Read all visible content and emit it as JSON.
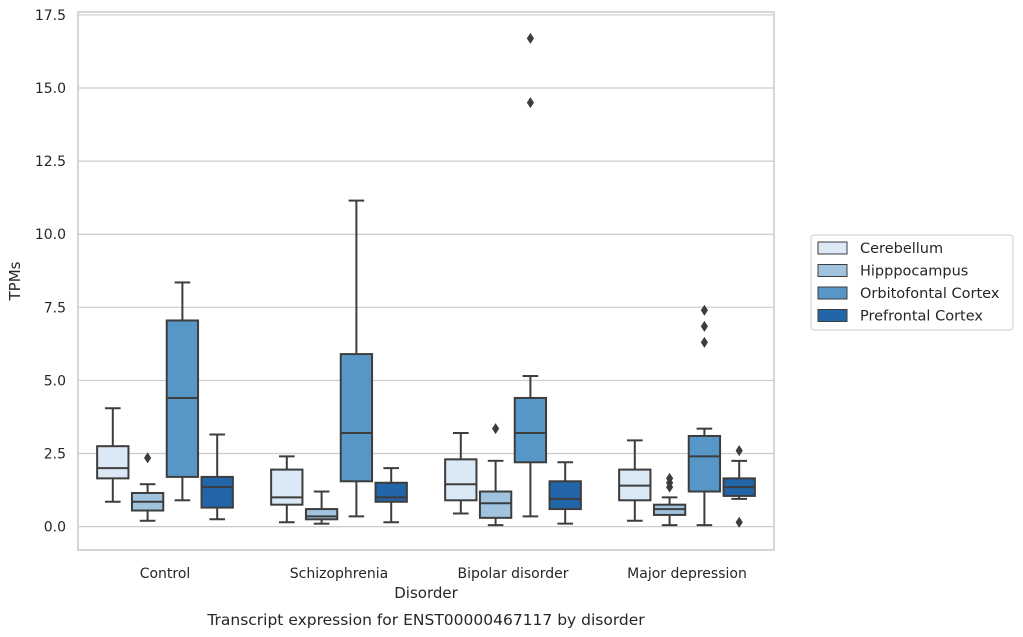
{
  "chart_data": {
    "type": "box",
    "xlabel": "Disorder",
    "ylabel": "TPMs",
    "caption": "Transcript expression for ENST00000467117 by disorder",
    "ylim": [
      -0.8,
      17.6
    ],
    "yticks": [
      "0.0",
      "2.5",
      "5.0",
      "7.5",
      "10.0",
      "12.5",
      "15.0",
      "17.5"
    ],
    "grid": "horizontal",
    "legend_position": "right",
    "categories": [
      "Control",
      "Schizophrenia",
      "Bipolar disorder",
      "Major depression"
    ],
    "series": [
      {
        "name": "Cerebellum",
        "color": "#dbe8f5",
        "boxes": [
          {
            "whisker_low": 0.85,
            "q1": 1.65,
            "median": 2.0,
            "q3": 2.75,
            "whisker_high": 4.05,
            "outliers": []
          },
          {
            "whisker_low": 0.15,
            "q1": 0.75,
            "median": 1.0,
            "q3": 1.95,
            "whisker_high": 2.4,
            "outliers": []
          },
          {
            "whisker_low": 0.45,
            "q1": 0.9,
            "median": 1.45,
            "q3": 2.3,
            "whisker_high": 3.2,
            "outliers": []
          },
          {
            "whisker_low": 0.2,
            "q1": 0.9,
            "median": 1.4,
            "q3": 1.95,
            "whisker_high": 2.95,
            "outliers": []
          }
        ]
      },
      {
        "name": "Hipppocampus",
        "color": "#a0c4e0",
        "boxes": [
          {
            "whisker_low": 0.2,
            "q1": 0.55,
            "median": 0.85,
            "q3": 1.15,
            "whisker_high": 1.45,
            "outliers": [
              2.35
            ]
          },
          {
            "whisker_low": 0.1,
            "q1": 0.25,
            "median": 0.35,
            "q3": 0.6,
            "whisker_high": 1.2,
            "outliers": []
          },
          {
            "whisker_low": 0.05,
            "q1": 0.3,
            "median": 0.8,
            "q3": 1.2,
            "whisker_high": 2.25,
            "outliers": [
              3.35
            ]
          },
          {
            "whisker_low": 0.05,
            "q1": 0.4,
            "median": 0.6,
            "q3": 0.75,
            "whisker_high": 1.0,
            "outliers": [
              1.35,
              1.5,
              1.65
            ]
          }
        ]
      },
      {
        "name": "Orbitofontal Cortex",
        "color": "#5697c8",
        "boxes": [
          {
            "whisker_low": 0.9,
            "q1": 1.7,
            "median": 4.4,
            "q3": 7.05,
            "whisker_high": 8.35,
            "outliers": []
          },
          {
            "whisker_low": 0.35,
            "q1": 1.55,
            "median": 3.2,
            "q3": 5.9,
            "whisker_high": 11.15,
            "outliers": []
          },
          {
            "whisker_low": 0.35,
            "q1": 2.2,
            "median": 3.2,
            "q3": 4.4,
            "whisker_high": 5.15,
            "outliers": [
              14.5,
              16.7
            ]
          },
          {
            "whisker_low": 0.05,
            "q1": 1.2,
            "median": 2.4,
            "q3": 3.1,
            "whisker_high": 3.35,
            "outliers": [
              6.3,
              6.85,
              7.4
            ]
          }
        ]
      },
      {
        "name": "Prefrontal Cortex",
        "color": "#2265a9",
        "boxes": [
          {
            "whisker_low": 0.25,
            "q1": 0.65,
            "median": 1.35,
            "q3": 1.7,
            "whisker_high": 3.15,
            "outliers": []
          },
          {
            "whisker_low": 0.15,
            "q1": 0.85,
            "median": 1.0,
            "q3": 1.5,
            "whisker_high": 2.0,
            "outliers": []
          },
          {
            "whisker_low": 0.1,
            "q1": 0.6,
            "median": 0.95,
            "q3": 1.55,
            "whisker_high": 2.2,
            "outliers": []
          },
          {
            "whisker_low": 0.95,
            "q1": 1.05,
            "median": 1.35,
            "q3": 1.65,
            "whisker_high": 2.25,
            "outliers": [
              0.15,
              2.6
            ]
          }
        ]
      }
    ]
  }
}
